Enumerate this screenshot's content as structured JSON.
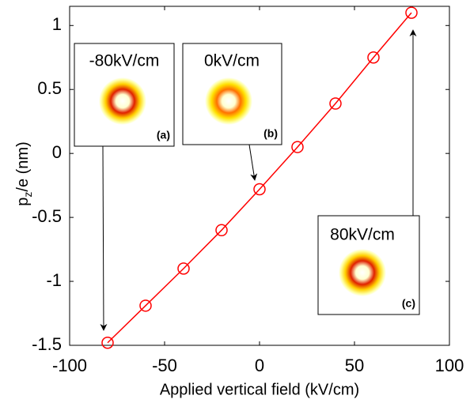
{
  "chart_data": {
    "type": "line",
    "xlabel": "Applied vertical field (kV/cm)",
    "ylabel": {
      "base": "p",
      "sub": "z",
      "rest": "/e (nm)"
    },
    "x": [
      -80,
      -60,
      -40,
      -20,
      0,
      20,
      40,
      60,
      80
    ],
    "series": [
      {
        "color": "#ff0000",
        "values": [
          -1.48,
          -1.19,
          -0.9,
          -0.6,
          -0.28,
          0.05,
          0.39,
          0.75,
          1.1
        ]
      }
    ],
    "xlim": [
      -100,
      100
    ],
    "xticks": [
      -100,
      -50,
      0,
      50,
      100
    ],
    "ylim": [
      -1.5,
      1.15
    ],
    "yticks": [
      -1.5,
      -1,
      -0.5,
      0,
      0.5,
      1
    ],
    "insets": [
      {
        "title": "-80kV/cm",
        "tag": "(a)"
      },
      {
        "title": "0kV/cm",
        "tag": "(b)"
      },
      {
        "title": "80kV/cm",
        "tag": "(c)"
      }
    ]
  }
}
